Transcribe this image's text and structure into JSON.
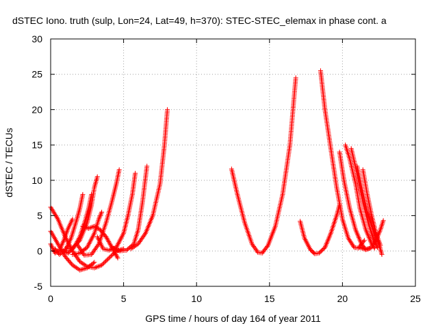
{
  "chart_data": {
    "type": "scatter",
    "title": "dSTEC Iono. truth (sulp, Lon=24, Lat=49, h=370): STEC-STEC_elemax in phase cont. a",
    "xlabel": "GPS time / hours of day 164 of year 2011",
    "ylabel": "dSTEC  / TECUs",
    "xlim": [
      0,
      25
    ],
    "ylim": [
      -5,
      30
    ],
    "xticks": [
      "0",
      "5",
      "10",
      "15",
      "20",
      "25"
    ],
    "yticks": [
      "-5",
      "0",
      "5",
      "10",
      "15",
      "20",
      "25",
      "30"
    ],
    "grid": true,
    "marker": "plus",
    "color": "#ff0000",
    "series": [
      {
        "points": [
          [
            0.0,
            6.2
          ],
          [
            0.5,
            4.5
          ],
          [
            1.0,
            2.0
          ],
          [
            1.5,
            0.0
          ],
          [
            2.0,
            -1.5
          ],
          [
            2.5,
            -2.2
          ],
          [
            3.0,
            -2.4
          ],
          [
            3.5,
            -2.0
          ],
          [
            4.0,
            -1.0
          ],
          [
            4.5,
            0.0
          ],
          [
            5.0,
            0.3
          ]
        ]
      },
      {
        "points": [
          [
            0.0,
            1.0
          ],
          [
            0.3,
            -0.3
          ],
          [
            0.6,
            0.1
          ],
          [
            0.9,
            1.5
          ],
          [
            1.2,
            3.2
          ],
          [
            1.5,
            4.5
          ]
        ]
      },
      {
        "points": [
          [
            0.0,
            2.8
          ],
          [
            0.5,
            1.0
          ],
          [
            1.0,
            -0.8
          ],
          [
            1.5,
            -2.0
          ],
          [
            2.0,
            -2.7
          ],
          [
            2.5,
            -2.4
          ],
          [
            3.0,
            -1.6
          ]
        ]
      },
      {
        "points": [
          [
            0.3,
            0.3
          ],
          [
            0.6,
            -0.5
          ],
          [
            1.0,
            0.1
          ],
          [
            1.4,
            1.8
          ],
          [
            1.8,
            4.5
          ],
          [
            2.0,
            6.0
          ],
          [
            2.2,
            8.0
          ]
        ]
      },
      {
        "points": [
          [
            0.8,
            0.0
          ],
          [
            1.2,
            -0.3
          ],
          [
            1.6,
            0.5
          ],
          [
            2.0,
            2.0
          ],
          [
            2.4,
            4.5
          ],
          [
            2.6,
            6.0
          ],
          [
            2.8,
            8.0
          ]
        ]
      },
      {
        "points": [
          [
            1.0,
            0.3
          ],
          [
            1.5,
            0.4
          ],
          [
            2.0,
            1.5
          ],
          [
            2.5,
            4.0
          ],
          [
            2.8,
            6.5
          ],
          [
            3.0,
            9.0
          ],
          [
            3.2,
            10.5
          ]
        ]
      },
      {
        "points": [
          [
            1.5,
            -0.5
          ],
          [
            2.0,
            -0.3
          ],
          [
            2.5,
            0.5
          ],
          [
            3.0,
            2.5
          ],
          [
            3.3,
            4.5
          ],
          [
            3.5,
            5.5
          ]
        ]
      },
      {
        "points": [
          [
            1.8,
            1.0
          ],
          [
            2.3,
            -0.6
          ],
          [
            2.8,
            -0.5
          ],
          [
            3.3,
            1.0
          ],
          [
            3.8,
            4.0
          ],
          [
            4.2,
            7.0
          ],
          [
            4.5,
            9.5
          ],
          [
            4.7,
            11.5
          ]
        ]
      },
      {
        "points": [
          [
            2.2,
            3.5
          ],
          [
            2.6,
            3.2
          ],
          [
            3.0,
            3.5
          ],
          [
            3.4,
            3.0
          ],
          [
            3.8,
            2.0
          ],
          [
            4.2,
            0.5
          ],
          [
            4.6,
            -1.0
          ]
        ]
      },
      {
        "points": [
          [
            3.2,
            2.0
          ],
          [
            3.6,
            0.3
          ],
          [
            4.0,
            0.1
          ],
          [
            4.5,
            0.5
          ],
          [
            5.0,
            2.5
          ],
          [
            5.3,
            5.0
          ],
          [
            5.6,
            8.0
          ],
          [
            5.8,
            11.0
          ]
        ]
      },
      {
        "points": [
          [
            4.2,
            0.5
          ],
          [
            4.7,
            0.0
          ],
          [
            5.2,
            0.1
          ],
          [
            5.7,
            1.0
          ],
          [
            6.0,
            3.0
          ],
          [
            6.3,
            7.0
          ],
          [
            6.6,
            12.0
          ]
        ]
      },
      {
        "points": [
          [
            5.5,
            0.3
          ],
          [
            6.0,
            1.0
          ],
          [
            6.5,
            2.5
          ],
          [
            7.0,
            5.0
          ],
          [
            7.5,
            9.5
          ],
          [
            7.8,
            15.0
          ],
          [
            8.0,
            20.0
          ]
        ]
      },
      {
        "points": [
          [
            12.4,
            11.6
          ],
          [
            12.8,
            8.0
          ],
          [
            13.3,
            4.0
          ],
          [
            13.8,
            1.0
          ],
          [
            14.2,
            -0.2
          ],
          [
            14.5,
            -0.3
          ],
          [
            14.9,
            0.8
          ],
          [
            15.4,
            3.5
          ],
          [
            15.9,
            8.0
          ],
          [
            16.4,
            15.0
          ],
          [
            16.8,
            24.5
          ]
        ]
      },
      {
        "points": [
          [
            17.1,
            4.2
          ],
          [
            17.4,
            1.8
          ],
          [
            17.8,
            0.2
          ],
          [
            18.1,
            -0.4
          ],
          [
            18.4,
            -0.3
          ],
          [
            18.8,
            0.5
          ],
          [
            19.2,
            2.5
          ],
          [
            19.6,
            5.0
          ],
          [
            19.8,
            6.5
          ]
        ]
      },
      {
        "points": [
          [
            18.5,
            25.5
          ],
          [
            18.8,
            20.0
          ],
          [
            19.2,
            14.5
          ],
          [
            19.6,
            9.0
          ],
          [
            20.0,
            4.5
          ],
          [
            20.4,
            1.8
          ],
          [
            20.8,
            0.5
          ],
          [
            21.1,
            0.4
          ],
          [
            21.5,
            1.5
          ]
        ]
      },
      {
        "points": [
          [
            19.8,
            14.0
          ],
          [
            20.1,
            10.0
          ],
          [
            20.5,
            6.0
          ],
          [
            20.9,
            3.0
          ],
          [
            21.3,
            1.0
          ],
          [
            21.6,
            0.2
          ],
          [
            21.9,
            0.4
          ]
        ]
      },
      {
        "points": [
          [
            20.2,
            15.0
          ],
          [
            20.5,
            13.0
          ],
          [
            20.9,
            9.5
          ],
          [
            21.2,
            6.0
          ],
          [
            21.6,
            3.0
          ],
          [
            22.0,
            1.0
          ],
          [
            22.2,
            0.4
          ]
        ]
      },
      {
        "points": [
          [
            20.6,
            14.5
          ],
          [
            21.0,
            11.0
          ],
          [
            21.4,
            7.0
          ],
          [
            21.8,
            3.8
          ],
          [
            22.1,
            1.8
          ],
          [
            22.4,
            0.5
          ]
        ]
      },
      {
        "points": [
          [
            21.0,
            12.0
          ],
          [
            21.3,
            9.0
          ],
          [
            21.7,
            5.5
          ],
          [
            22.1,
            3.0
          ],
          [
            22.5,
            1.0
          ],
          [
            22.7,
            -0.5
          ]
        ]
      },
      {
        "points": [
          [
            21.4,
            11.5
          ],
          [
            21.7,
            8.0
          ],
          [
            22.0,
            5.0
          ],
          [
            22.3,
            2.5
          ],
          [
            22.6,
            0.8
          ]
        ]
      },
      {
        "points": [
          [
            21.2,
            0.5
          ],
          [
            21.6,
            0.2
          ],
          [
            22.0,
            0.5
          ],
          [
            22.3,
            1.5
          ],
          [
            22.6,
            3.0
          ],
          [
            22.8,
            4.3
          ]
        ]
      }
    ]
  }
}
